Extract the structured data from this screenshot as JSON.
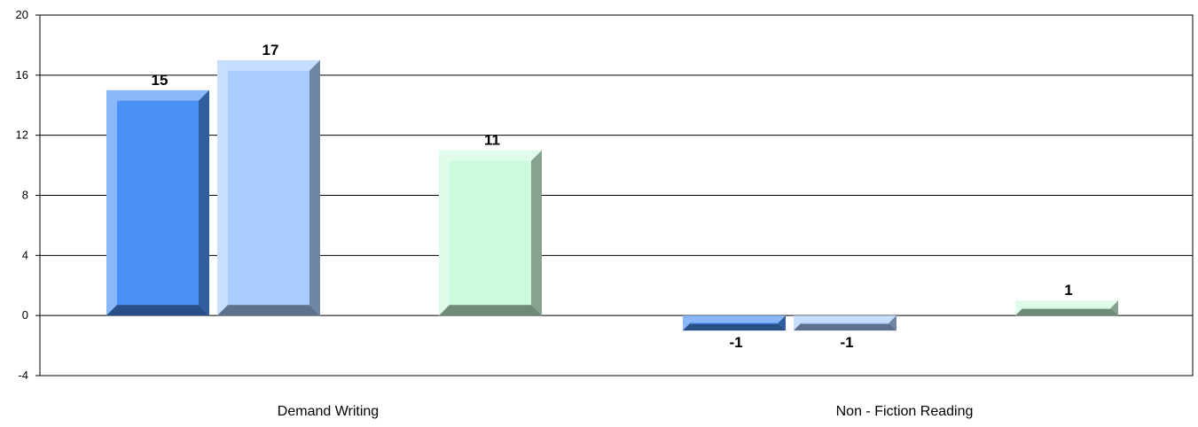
{
  "chart_data": {
    "type": "bar",
    "categories": [
      "Demand Writing",
      "Non - Fiction Reading"
    ],
    "series": [
      {
        "values": [
          15,
          -1
        ],
        "color": "#4a90f5"
      },
      {
        "values": [
          17,
          -1
        ],
        "color": "#a9ccff"
      },
      {
        "values": [
          null,
          null
        ]
      },
      {
        "values": [
          11,
          1
        ],
        "color": "#ccfadd"
      }
    ],
    "data_labels": [
      [
        "15",
        "17",
        null,
        "11"
      ],
      [
        "-1",
        "-1",
        null,
        "1"
      ]
    ],
    "ylim": [
      -4,
      20
    ],
    "yticks": [
      -4,
      0,
      4,
      8,
      12,
      16,
      20
    ],
    "ytick_labels": [
      "-4",
      "0",
      "4",
      "8",
      "12",
      "16",
      "20"
    ],
    "grid": true,
    "legend": "none"
  }
}
